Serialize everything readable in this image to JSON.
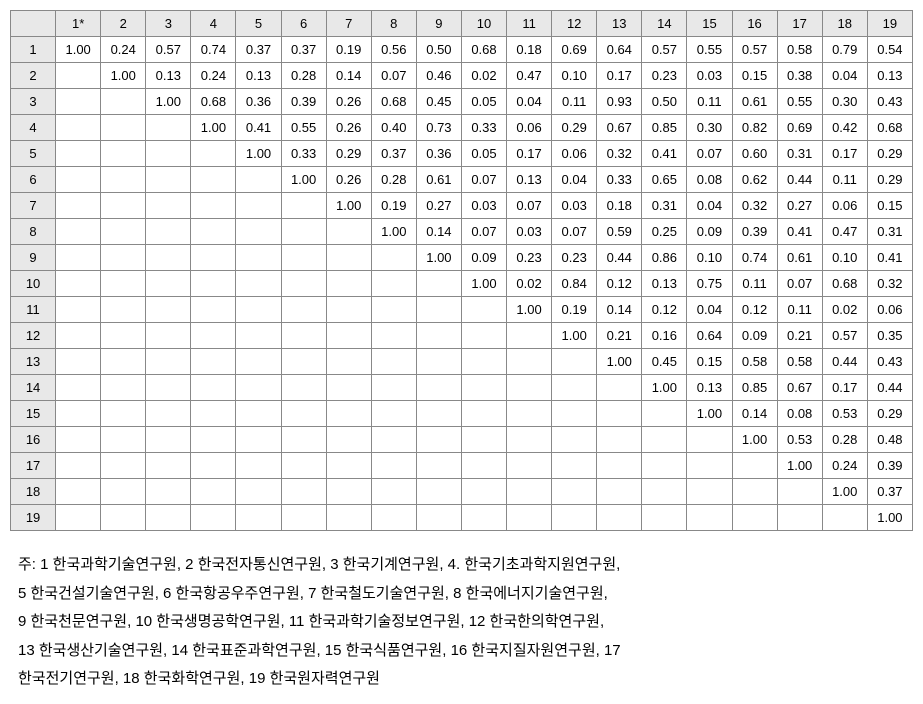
{
  "table": {
    "type": "table",
    "corner_label": "",
    "column_headers": [
      "1*",
      "2",
      "3",
      "4",
      "5",
      "6",
      "7",
      "8",
      "9",
      "10",
      "11",
      "12",
      "13",
      "14",
      "15",
      "16",
      "17",
      "18",
      "19"
    ],
    "row_headers": [
      "1",
      "2",
      "3",
      "4",
      "5",
      "6",
      "7",
      "8",
      "9",
      "10",
      "11",
      "12",
      "13",
      "14",
      "15",
      "16",
      "17",
      "18",
      "19"
    ],
    "rows": [
      [
        "1.00",
        "0.24",
        "0.57",
        "0.74",
        "0.37",
        "0.37",
        "0.19",
        "0.56",
        "0.50",
        "0.68",
        "0.18",
        "0.69",
        "0.64",
        "0.57",
        "0.55",
        "0.57",
        "0.58",
        "0.79",
        "0.54"
      ],
      [
        "",
        "1.00",
        "0.13",
        "0.24",
        "0.13",
        "0.28",
        "0.14",
        "0.07",
        "0.46",
        "0.02",
        "0.47",
        "0.10",
        "0.17",
        "0.23",
        "0.03",
        "0.15",
        "0.38",
        "0.04",
        "0.13"
      ],
      [
        "",
        "",
        "1.00",
        "0.68",
        "0.36",
        "0.39",
        "0.26",
        "0.68",
        "0.45",
        "0.05",
        "0.04",
        "0.11",
        "0.93",
        "0.50",
        "0.11",
        "0.61",
        "0.55",
        "0.30",
        "0.43"
      ],
      [
        "",
        "",
        "",
        "1.00",
        "0.41",
        "0.55",
        "0.26",
        "0.40",
        "0.73",
        "0.33",
        "0.06",
        "0.29",
        "0.67",
        "0.85",
        "0.30",
        "0.82",
        "0.69",
        "0.42",
        "0.68"
      ],
      [
        "",
        "",
        "",
        "",
        "1.00",
        "0.33",
        "0.29",
        "0.37",
        "0.36",
        "0.05",
        "0.17",
        "0.06",
        "0.32",
        "0.41",
        "0.07",
        "0.60",
        "0.31",
        "0.17",
        "0.29"
      ],
      [
        "",
        "",
        "",
        "",
        "",
        "1.00",
        "0.26",
        "0.28",
        "0.61",
        "0.07",
        "0.13",
        "0.04",
        "0.33",
        "0.65",
        "0.08",
        "0.62",
        "0.44",
        "0.11",
        "0.29"
      ],
      [
        "",
        "",
        "",
        "",
        "",
        "",
        "1.00",
        "0.19",
        "0.27",
        "0.03",
        "0.07",
        "0.03",
        "0.18",
        "0.31",
        "0.04",
        "0.32",
        "0.27",
        "0.06",
        "0.15"
      ],
      [
        "",
        "",
        "",
        "",
        "",
        "",
        "",
        "1.00",
        "0.14",
        "0.07",
        "0.03",
        "0.07",
        "0.59",
        "0.25",
        "0.09",
        "0.39",
        "0.41",
        "0.47",
        "0.31"
      ],
      [
        "",
        "",
        "",
        "",
        "",
        "",
        "",
        "",
        "1.00",
        "0.09",
        "0.23",
        "0.23",
        "0.44",
        "0.86",
        "0.10",
        "0.74",
        "0.61",
        "0.10",
        "0.41"
      ],
      [
        "",
        "",
        "",
        "",
        "",
        "",
        "",
        "",
        "",
        "1.00",
        "0.02",
        "0.84",
        "0.12",
        "0.13",
        "0.75",
        "0.11",
        "0.07",
        "0.68",
        "0.32"
      ],
      [
        "",
        "",
        "",
        "",
        "",
        "",
        "",
        "",
        "",
        "",
        "1.00",
        "0.19",
        "0.14",
        "0.12",
        "0.04",
        "0.12",
        "0.11",
        "0.02",
        "0.06"
      ],
      [
        "",
        "",
        "",
        "",
        "",
        "",
        "",
        "",
        "",
        "",
        "",
        "1.00",
        "0.21",
        "0.16",
        "0.64",
        "0.09",
        "0.21",
        "0.57",
        "0.35"
      ],
      [
        "",
        "",
        "",
        "",
        "",
        "",
        "",
        "",
        "",
        "",
        "",
        "",
        "1.00",
        "0.45",
        "0.15",
        "0.58",
        "0.58",
        "0.44",
        "0.43"
      ],
      [
        "",
        "",
        "",
        "",
        "",
        "",
        "",
        "",
        "",
        "",
        "",
        "",
        "",
        "1.00",
        "0.13",
        "0.85",
        "0.67",
        "0.17",
        "0.44"
      ],
      [
        "",
        "",
        "",
        "",
        "",
        "",
        "",
        "",
        "",
        "",
        "",
        "",
        "",
        "",
        "1.00",
        "0.14",
        "0.08",
        "0.53",
        "0.29"
      ],
      [
        "",
        "",
        "",
        "",
        "",
        "",
        "",
        "",
        "",
        "",
        "",
        "",
        "",
        "",
        "",
        "1.00",
        "0.53",
        "0.28",
        "0.48"
      ],
      [
        "",
        "",
        "",
        "",
        "",
        "",
        "",
        "",
        "",
        "",
        "",
        "",
        "",
        "",
        "",
        "",
        "1.00",
        "0.24",
        "0.39"
      ],
      [
        "",
        "",
        "",
        "",
        "",
        "",
        "",
        "",
        "",
        "",
        "",
        "",
        "",
        "",
        "",
        "",
        "",
        "1.00",
        "0.37"
      ],
      [
        "",
        "",
        "",
        "",
        "",
        "",
        "",
        "",
        "",
        "",
        "",
        "",
        "",
        "",
        "",
        "",
        "",
        "",
        "1.00"
      ]
    ],
    "header_bg_color": "#e8e8e8",
    "cell_bg_color": "#ffffff",
    "border_color": "#888888",
    "text_color": "#000000",
    "font_size": 13,
    "column_count": 19,
    "row_count": 19
  },
  "footnote": {
    "label": "주:",
    "text_lines": [
      "주: 1 한국과학기술연구원, 2 한국전자통신연구원, 3 한국기계연구원, 4. 한국기초과학지원연구원,",
      "5 한국건설기술연구원, 6 한국항공우주연구원, 7 한국철도기술연구원, 8 한국에너지기술연구원,",
      "9 한국천문연구원, 10 한국생명공학연구원, 11 한국과학기술정보연구원, 12 한국한의학연구원,",
      "13 한국생산기술연구원, 14 한국표준과학연구원, 15 한국식품연구원, 16 한국지질자원연구원, 17",
      "한국전기연구원, 18 한국화학연구원, 19 한국원자력연구원"
    ],
    "font_size": 15,
    "text_color": "#000000"
  }
}
